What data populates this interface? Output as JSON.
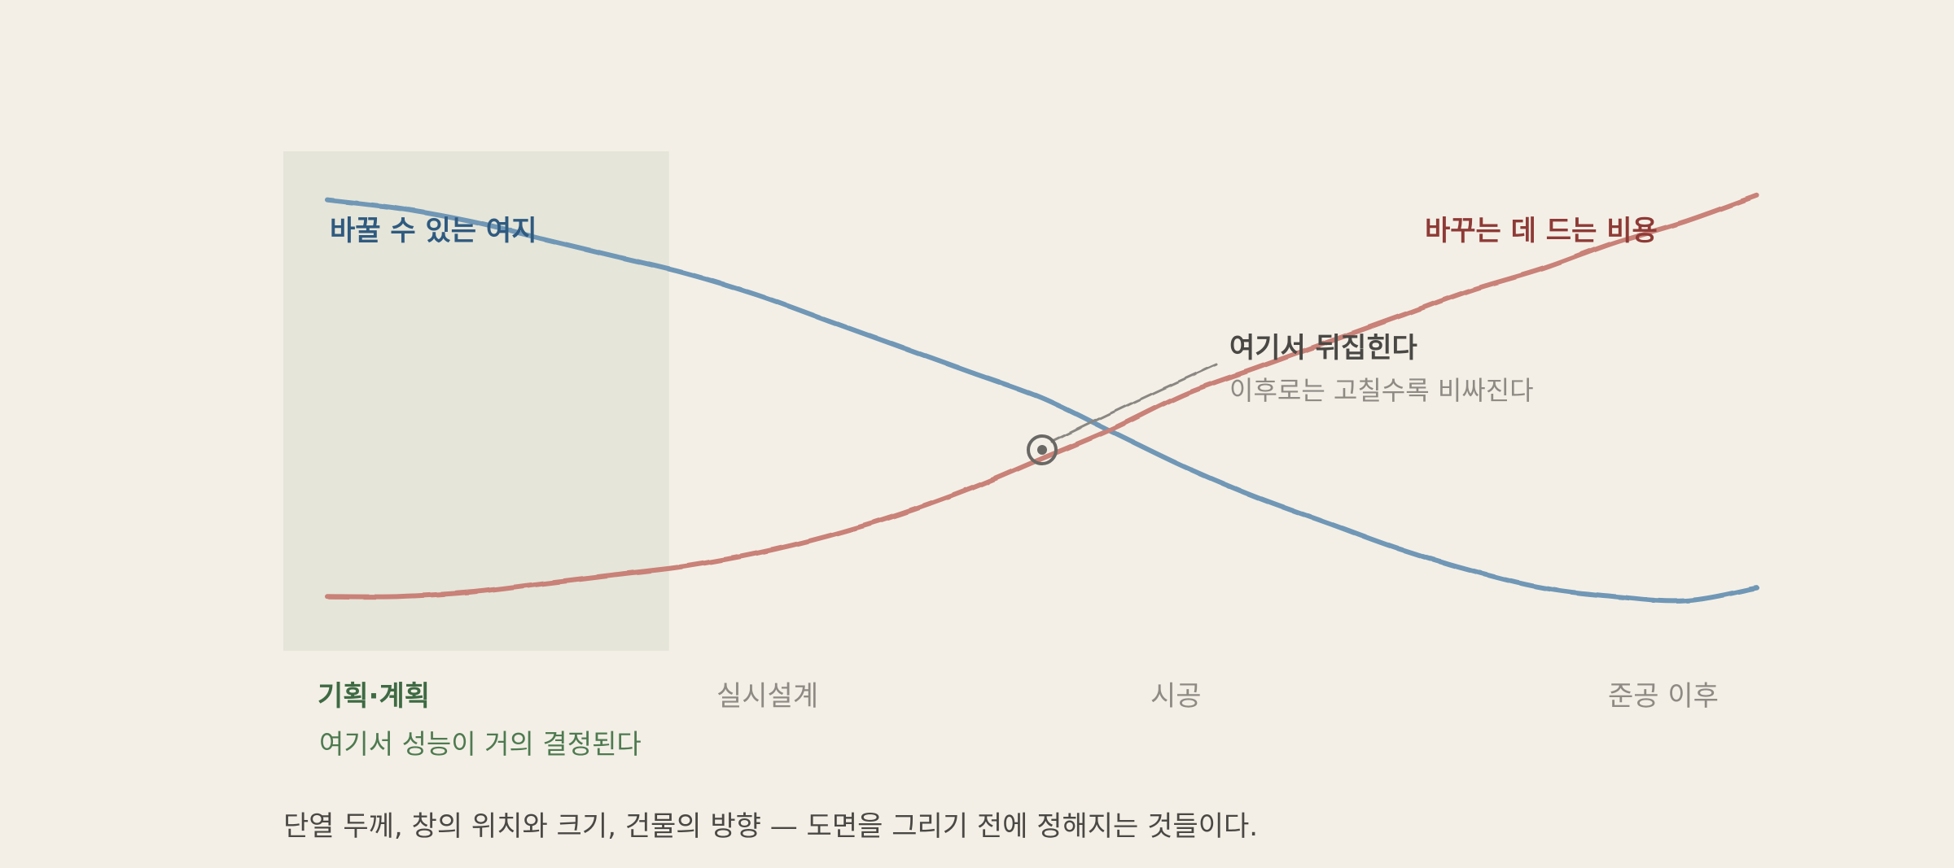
{
  "chart_data": {
    "type": "line",
    "x_categories": [
      "기획·계획",
      "실시설계",
      "시공",
      "준공 이후"
    ],
    "xlim": [
      0,
      1
    ],
    "ylim": [
      0,
      1
    ],
    "grid": false,
    "series": [
      {
        "name": "바꿀 수 있는 여지",
        "color": "#6f97b6",
        "label_color": "#2f5a80",
        "points": [
          [
            0,
            0.98
          ],
          [
            0.05,
            0.96
          ],
          [
            0.1,
            0.93
          ],
          [
            0.15,
            0.89
          ],
          [
            0.2,
            0.85
          ],
          [
            0.25,
            0.81
          ],
          [
            0.3,
            0.76
          ],
          [
            0.35,
            0.7
          ],
          [
            0.4,
            0.64
          ],
          [
            0.45,
            0.58
          ],
          [
            0.5,
            0.52
          ],
          [
            0.55,
            0.44
          ],
          [
            0.6,
            0.36
          ],
          [
            0.65,
            0.29
          ],
          [
            0.7,
            0.23
          ],
          [
            0.75,
            0.17
          ],
          [
            0.8,
            0.12
          ],
          [
            0.85,
            0.08
          ],
          [
            0.9,
            0.06
          ],
          [
            0.95,
            0.05
          ],
          [
            1.0,
            0.08
          ]
        ]
      },
      {
        "name": "바꾸는 데 드는 비용",
        "color": "#c98178",
        "label_color": "#8e3a36",
        "points": [
          [
            0,
            0.06
          ],
          [
            0.05,
            0.06
          ],
          [
            0.1,
            0.07
          ],
          [
            0.15,
            0.09
          ],
          [
            0.2,
            0.11
          ],
          [
            0.25,
            0.13
          ],
          [
            0.3,
            0.16
          ],
          [
            0.35,
            0.2
          ],
          [
            0.4,
            0.25
          ],
          [
            0.45,
            0.31
          ],
          [
            0.5,
            0.38
          ],
          [
            0.55,
            0.45
          ],
          [
            0.6,
            0.53
          ],
          [
            0.65,
            0.59
          ],
          [
            0.7,
            0.65
          ],
          [
            0.75,
            0.71
          ],
          [
            0.8,
            0.77
          ],
          [
            0.85,
            0.82
          ],
          [
            0.9,
            0.88
          ],
          [
            0.95,
            0.93
          ],
          [
            1.0,
            0.99
          ]
        ]
      }
    ],
    "highlight_region": {
      "x_range": [
        0,
        0.235
      ],
      "label": "기획·계획",
      "note": "여기서 성능이 거의 결정된다",
      "color": "#e5e5d9"
    },
    "annotation": {
      "point": [
        0.5,
        0.4
      ],
      "title": "여기서 뒤집힌다",
      "subtitle": "이후로는 고칠수록 비싸진다"
    },
    "caption": "단열 두께, 창의 위치와 크기, 건물의 방향 — 도면을 그리기 전에 정해지는 것들이다.",
    "axis_color": "#8f8c84",
    "marker_color": "#6a6864"
  }
}
